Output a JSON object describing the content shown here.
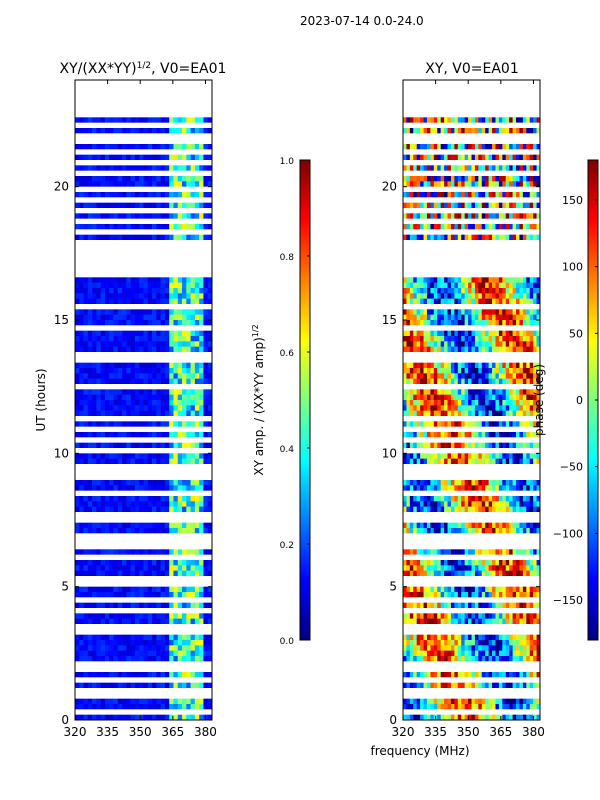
{
  "suptitle": "2023-07-14 0.0-24.0",
  "colors": {
    "jet": [
      "#00007f",
      "#0000ff",
      "#007fff",
      "#00ffff",
      "#7fff7f",
      "#ffff00",
      "#ff7f00",
      "#ff0000",
      "#7f0000"
    ],
    "gap": "#ffffff",
    "axis": "#000000"
  },
  "chart_data": [
    {
      "type": "heatmap",
      "name": "amplitude",
      "title_main": "XY/(XX*YY)",
      "title_sup": "1/2",
      "title_rest": ", V0=EA01",
      "xlabel": "",
      "ylabel": "UT (hours)",
      "xlim": [
        320,
        383
      ],
      "ylim": [
        0,
        24
      ],
      "xticks": [
        320,
        335,
        350,
        365,
        380
      ],
      "yticks": [
        0,
        5,
        10,
        15,
        20
      ],
      "bright_band_mhz": [
        363,
        380
      ],
      "colorbar": {
        "label_main": "XY amp. / (XX*YY amp)",
        "label_sup": "1/2",
        "range": [
          0.0,
          1.0
        ],
        "ticks": [
          "0.0",
          "0.2",
          "0.4",
          "0.6",
          "0.8",
          "1.0"
        ]
      }
    },
    {
      "type": "heatmap",
      "name": "phase",
      "title_main": "XY, V0=EA01",
      "title_sup": "",
      "title_rest": "",
      "xlabel": "frequency (MHz)",
      "ylabel": "",
      "xlim": [
        320,
        383
      ],
      "ylim": [
        0,
        24
      ],
      "xticks": [
        320,
        335,
        350,
        365,
        380
      ],
      "yticks": [
        0,
        5,
        10,
        15,
        20
      ],
      "colorbar": {
        "label_main": "phase (deg)",
        "label_sup": "",
        "range": [
          -180,
          180
        ],
        "ticks": [
          "−150",
          "−100",
          "−50",
          "0",
          "50",
          "100",
          "150"
        ],
        "tick_values": [
          -150,
          -100,
          -50,
          0,
          50,
          100,
          150
        ]
      }
    }
  ],
  "gap_rows_ut": [
    0.35,
    0.9,
    1.15,
    1.55,
    1.85,
    2.0,
    2.15,
    3.2,
    3.5,
    4.15,
    4.55,
    5.1,
    5.3,
    6.0,
    6.6,
    6.9,
    7.6,
    7.7,
    8.45,
    9.0,
    9.2,
    9.45,
    10.0,
    10.45,
    10.9,
    11.3,
    12.5,
    12.55,
    13.5,
    13.7,
    14.7,
    15.4,
    16.7,
    16.8,
    16.9,
    17.0,
    17.15,
    17.3,
    17.5,
    17.7,
    17.9,
    18.2,
    18.6,
    19.0,
    19.4,
    19.9,
    20.4,
    20.9,
    21.3,
    21.7,
    21.9,
    22.3,
    22.6,
    22.9,
    23.1,
    23.3,
    23.5,
    23.7,
    23.9
  ]
}
